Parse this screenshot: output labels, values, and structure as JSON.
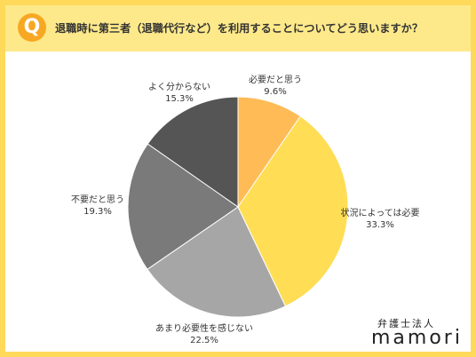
{
  "header": {
    "badge": "Q",
    "title": "退職時に第三者（退職代行など）を利用することについてどう思いますか？"
  },
  "footer": {
    "firm": "弁護士法人",
    "brand": "mamori"
  },
  "chart_data": {
    "type": "pie",
    "title": "",
    "start_angle_deg": 0,
    "direction": "clockwise",
    "slices": [
      {
        "label": "必要だと思う",
        "value": 9.6,
        "value_label": "9.6%",
        "color": "#ffbb55"
      },
      {
        "label": "状況によっては必要",
        "value": 33.3,
        "value_label": "33.3%",
        "color": "#ffdd55"
      },
      {
        "label": "あまり必要性を感じない",
        "value": 22.5,
        "value_label": "22.5%",
        "color": "#a6a6a6"
      },
      {
        "label": "不要だと思う",
        "value": 19.3,
        "value_label": "19.3%",
        "color": "#7a7a7a"
      },
      {
        "label": "よく分からない",
        "value": 15.3,
        "value_label": "15.3%",
        "color": "#555555"
      }
    ]
  }
}
